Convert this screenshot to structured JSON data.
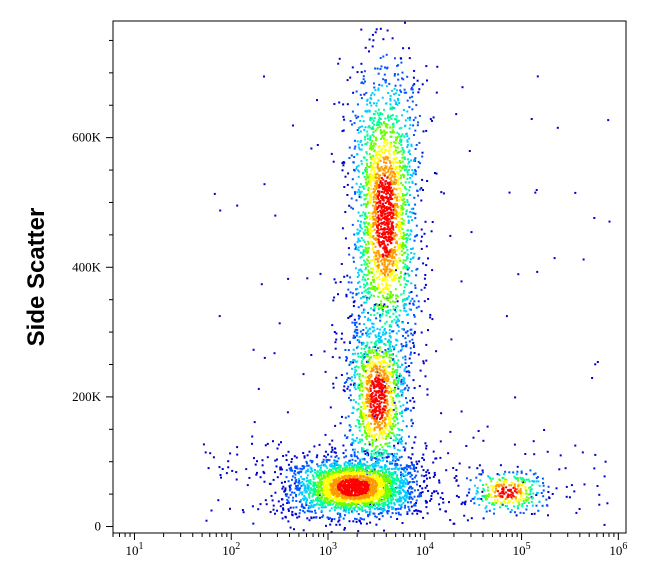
{
  "chart_data": {
    "type": "scatter",
    "subtype": "flow-cytometry density dot plot",
    "title": "",
    "xlabel": "",
    "ylabel": "Side Scatter",
    "x_scale": "log",
    "xlim": [
      6,
      1200000
    ],
    "ylim": [
      -10000,
      780000
    ],
    "x_ticks": [
      {
        "value": 10,
        "base": "10",
        "exp": "1"
      },
      {
        "value": 100,
        "base": "10",
        "exp": "2"
      },
      {
        "value": 1000,
        "base": "10",
        "exp": "3"
      },
      {
        "value": 10000,
        "base": "10",
        "exp": "4"
      },
      {
        "value": 100000,
        "base": "10",
        "exp": "5"
      },
      {
        "value": 1000000,
        "base": "10",
        "exp": "6"
      }
    ],
    "y_ticks": [
      {
        "value": 0,
        "label": "0"
      },
      {
        "value": 200000,
        "label": "200K"
      },
      {
        "value": 400000,
        "label": "400K"
      },
      {
        "value": 600000,
        "label": "600K"
      }
    ],
    "grid": false,
    "density_colormap": [
      "#0000cc",
      "#0055ff",
      "#00ccff",
      "#00ff99",
      "#66ff00",
      "#ffff00",
      "#ff9900",
      "#ff0000"
    ],
    "populations": [
      {
        "x_center": 1800,
        "x_log_sd": 0.28,
        "y_center": 62000,
        "y_sd": 22000,
        "relative_size": 1.0
      },
      {
        "x_center": 3800,
        "x_log_sd": 0.15,
        "y_center": 480000,
        "y_sd": 110000,
        "relative_size": 0.85
      },
      {
        "x_center": 3200,
        "x_log_sd": 0.14,
        "y_center": 200000,
        "y_sd": 60000,
        "relative_size": 0.45
      },
      {
        "x_center": 70000,
        "x_log_sd": 0.17,
        "y_center": 55000,
        "y_sd": 16000,
        "relative_size": 0.12
      }
    ]
  }
}
